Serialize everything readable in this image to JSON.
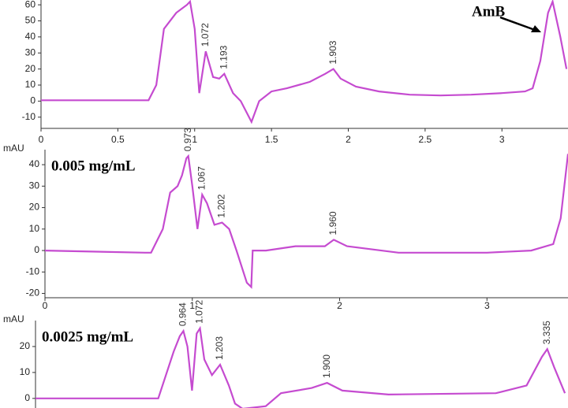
{
  "chart_data": [
    {
      "type": "line",
      "color": "#c54bd0",
      "x": [
        0,
        0.7,
        0.75,
        0.8,
        0.88,
        0.95,
        0.97,
        1.0,
        1.03,
        1.072,
        1.12,
        1.16,
        1.193,
        1.25,
        1.3,
        1.37,
        1.42,
        1.5,
        1.6,
        1.75,
        1.85,
        1.903,
        1.95,
        2.05,
        2.2,
        2.4,
        2.6,
        2.8,
        3.0,
        3.15,
        3.2,
        3.25,
        3.3,
        3.33,
        3.38,
        3.42
      ],
      "values": [
        0.5,
        0.5,
        10,
        45,
        55,
        60,
        62,
        45,
        5,
        31,
        15,
        14,
        17,
        5,
        0,
        -13,
        0,
        6,
        8,
        12,
        17,
        20,
        14,
        9,
        6,
        4,
        3.5,
        4,
        5,
        6,
        8,
        25,
        55,
        62,
        40,
        20
      ],
      "xlim": [
        0,
        3.43
      ],
      "ylim": [
        -17,
        63
      ],
      "xticks": [
        0,
        0.5,
        1,
        1.5,
        2,
        2.5,
        3
      ],
      "yticks": [
        -10,
        0,
        10,
        20,
        30,
        40,
        50,
        60
      ],
      "peak_labels": [
        1.072,
        1.193,
        1.903
      ],
      "annotation": "AmB"
    },
    {
      "type": "line",
      "color": "#c54bd0",
      "title": "0.005 mg/mL",
      "ylabel": "mAU",
      "x": [
        0,
        0.68,
        0.72,
        0.8,
        0.85,
        0.9,
        0.93,
        0.96,
        0.973,
        1.0,
        1.035,
        1.067,
        1.1,
        1.15,
        1.202,
        1.25,
        1.3,
        1.37,
        1.4,
        1.41,
        1.5,
        1.7,
        1.9,
        1.96,
        2.05,
        2.4,
        2.7,
        3.0,
        3.3,
        3.45,
        3.5,
        3.55
      ],
      "values": [
        0,
        -1,
        -1,
        10,
        27,
        30,
        35,
        43,
        44,
        30,
        10,
        26,
        22,
        12,
        13,
        10,
        0,
        -15,
        -17,
        0,
        0,
        2,
        2,
        5,
        2,
        -1,
        -1,
        -1,
        0,
        3,
        15,
        45
      ],
      "xlim": [
        0,
        3.55
      ],
      "ylim": [
        -22,
        47
      ],
      "xticks": [
        0,
        1,
        2,
        3
      ],
      "yticks": [
        -20,
        -10,
        0,
        10,
        20,
        30,
        40
      ],
      "peak_labels": [
        0.973,
        1.067,
        1.202,
        {
          "value": 1.96,
          "label": "1.960"
        }
      ]
    },
    {
      "type": "line",
      "color": "#c54bd0",
      "title": "0.0025 mg/mL",
      "ylabel": "mAU",
      "x": [
        0,
        0.8,
        0.9,
        0.94,
        0.964,
        0.99,
        1.02,
        1.05,
        1.072,
        1.1,
        1.15,
        1.203,
        1.26,
        1.3,
        1.35,
        1.5,
        1.6,
        1.8,
        1.9,
        2.0,
        2.3,
        3.0,
        3.2,
        3.3,
        3.335,
        3.38,
        3.45
      ],
      "values": [
        0,
        0,
        18,
        24,
        26,
        20,
        3,
        25,
        27,
        15,
        9,
        13,
        5,
        -2,
        -4,
        -3,
        2,
        4,
        6,
        3,
        1.5,
        2,
        5,
        16,
        19,
        12,
        2
      ],
      "xlim": [
        0,
        3.47
      ],
      "ylim": [
        -4,
        30
      ],
      "yticks": [
        0,
        10,
        20
      ],
      "peak_labels": [
        0.964,
        1.072,
        1.203,
        {
          "value": 1.9,
          "label": "1.900"
        },
        3.335
      ]
    }
  ]
}
